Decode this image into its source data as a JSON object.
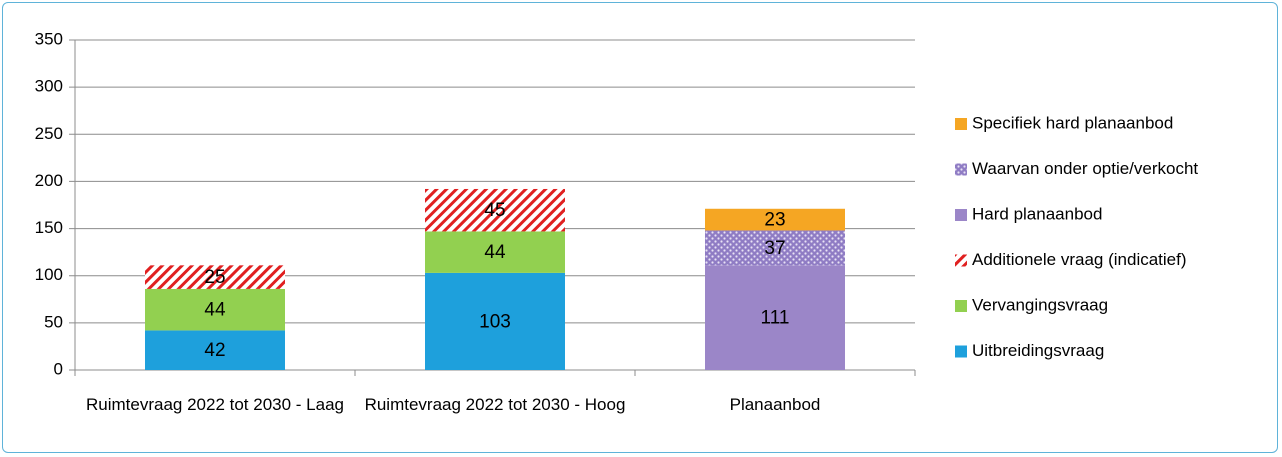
{
  "chart_data": {
    "type": "stacked_bar",
    "categories": [
      "Ruimtevraag 2022 tot 2030 - Laag",
      "Ruimtevraag 2022 tot 2030 - Hoog",
      "Planaanbod"
    ],
    "series": [
      {
        "name": "Uitbreidingsvraag",
        "color": "#1ea0dc",
        "pattern": "solid",
        "values": [
          42,
          103,
          null
        ]
      },
      {
        "name": "Vervangingsvraag",
        "color": "#92d050",
        "pattern": "solid",
        "values": [
          44,
          44,
          null
        ]
      },
      {
        "name": "Additionele vraag (indicatief)",
        "color": "#e02020",
        "pattern": "hatch",
        "values": [
          25,
          45,
          null
        ]
      },
      {
        "name": "Hard planaanbod",
        "color": "#9b86c8",
        "pattern": "solid",
        "values": [
          null,
          null,
          111
        ]
      },
      {
        "name": "Waarvan onder optie/verkocht",
        "color": "#8f7cc4",
        "pattern": "dots",
        "values": [
          null,
          null,
          37
        ]
      },
      {
        "name": "Specifiek hard planaanbod",
        "color": "#f5a623",
        "pattern": "solid",
        "values": [
          null,
          null,
          23
        ]
      }
    ],
    "ylim": [
      0,
      350
    ],
    "yticks": [
      0,
      50,
      100,
      150,
      200,
      250,
      300,
      350
    ],
    "grid": true,
    "legend": "right"
  }
}
